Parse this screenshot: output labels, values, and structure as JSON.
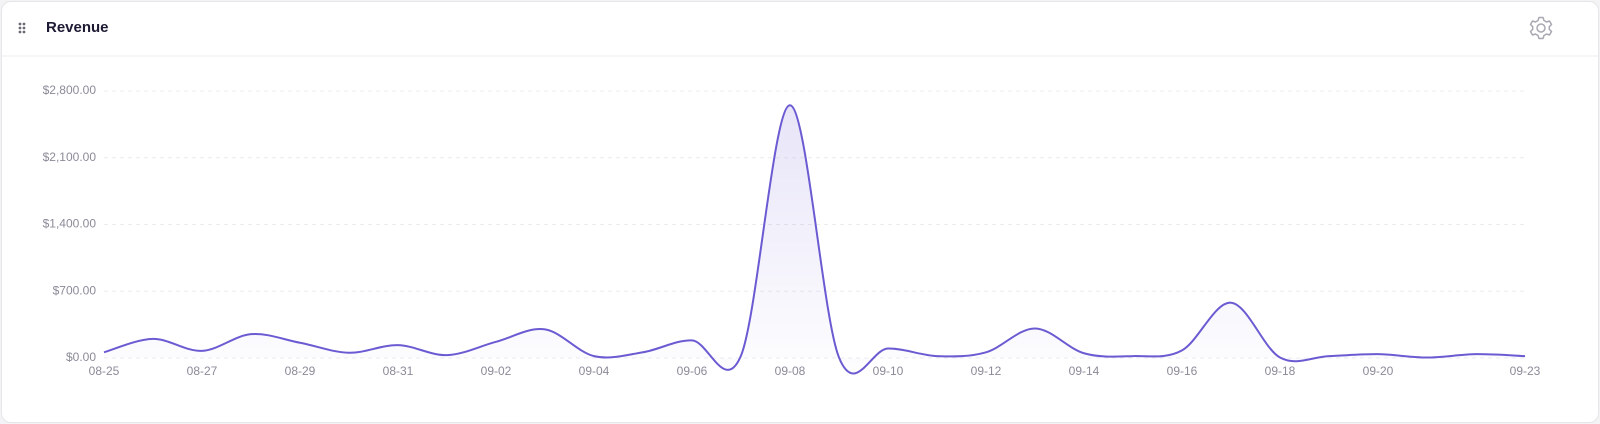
{
  "chart_data": {
    "type": "line",
    "title": "Revenue",
    "categories": [
      "08-25",
      null,
      "08-27",
      null,
      "08-29",
      null,
      "08-31",
      null,
      "09-02",
      null,
      "09-04",
      null,
      "09-06",
      null,
      "09-08",
      null,
      "09-10",
      null,
      "09-12",
      null,
      "09-14",
      null,
      "09-16",
      null,
      "09-18",
      null,
      "09-20",
      null,
      null,
      "09-23"
    ],
    "series": [
      {
        "name": "Revenue",
        "color": "#6b5bd2",
        "values": [
          60,
          200,
          75,
          250,
          160,
          55,
          135,
          30,
          170,
          300,
          20,
          60,
          185,
          25,
          2650,
          5,
          100,
          20,
          60,
          310,
          50,
          20,
          80,
          580,
          5,
          20,
          40,
          5,
          40,
          20
        ]
      }
    ],
    "ylim": [
      0,
      2800
    ],
    "yticks": [
      {
        "value": 0,
        "label": "$0.00"
      },
      {
        "value": 700,
        "label": "$700.00"
      },
      {
        "value": 1400,
        "label": "$1,400.00"
      },
      {
        "value": 2100,
        "label": "$2,100.00"
      },
      {
        "value": 2800,
        "label": "$2,800.00"
      }
    ],
    "grid": true
  }
}
